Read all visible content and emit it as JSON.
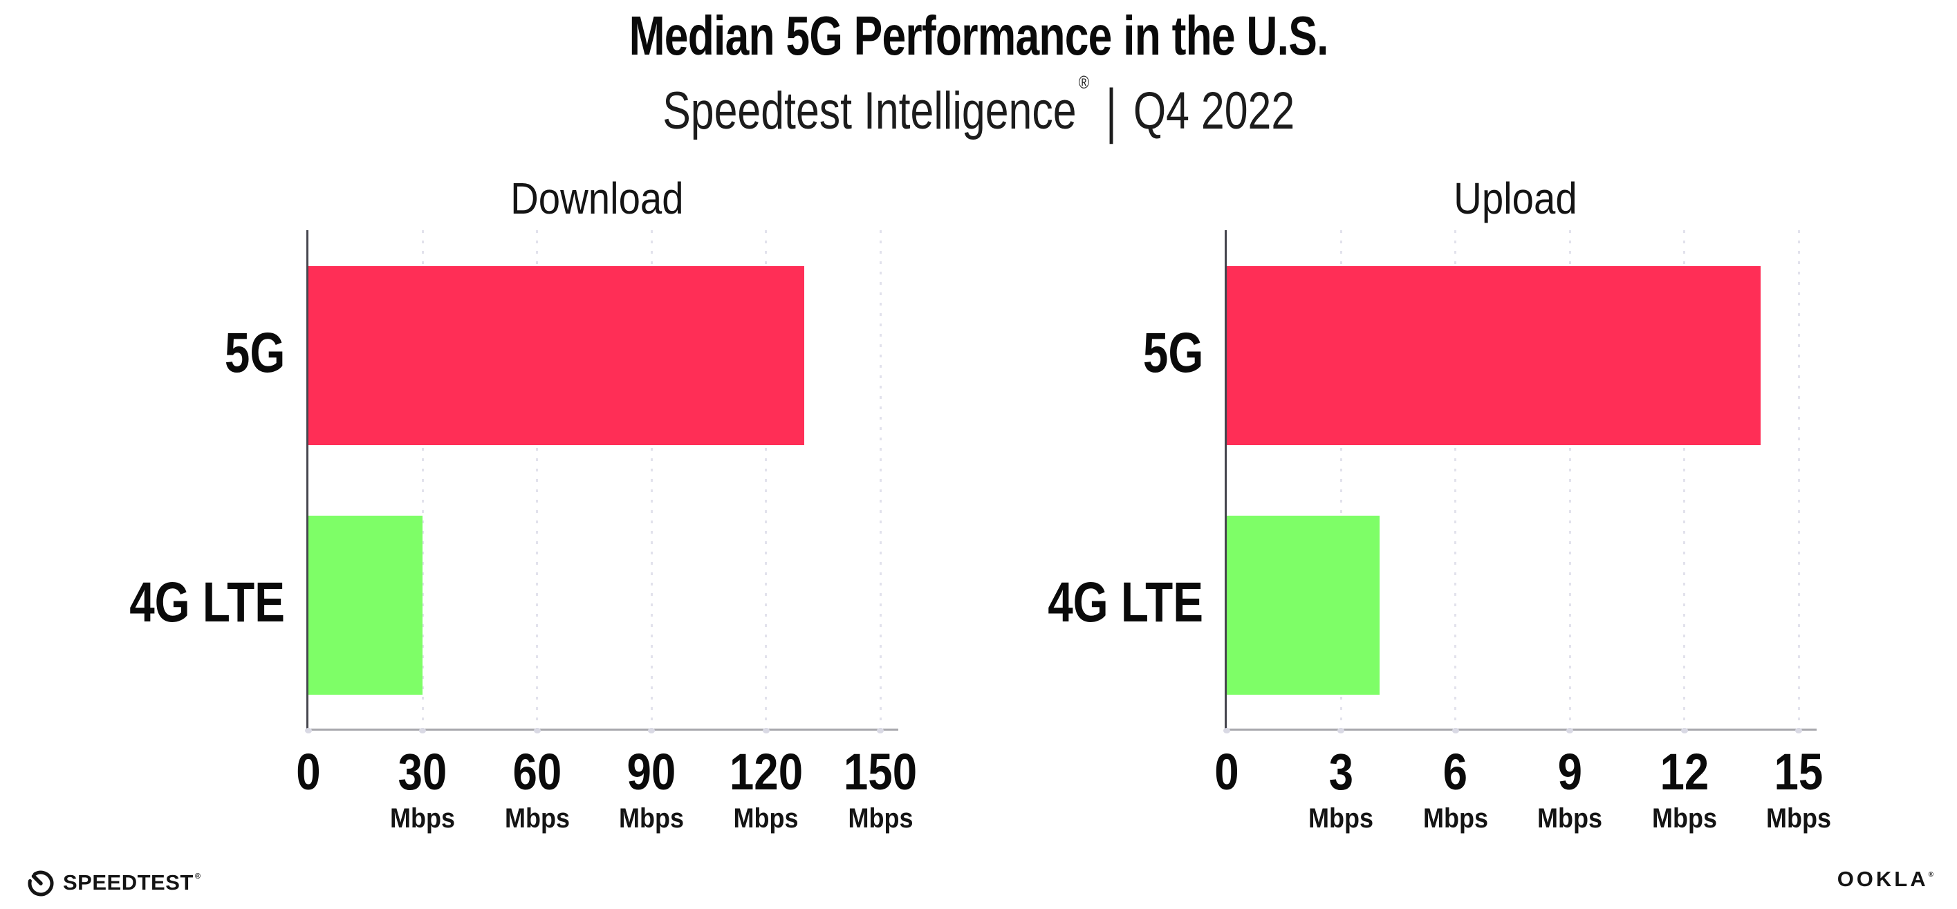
{
  "header": {
    "title": "Median 5G Performance in the U.S.",
    "subtitle_brand": "Speedtest Intelligence",
    "subtitle_reg": "®",
    "subtitle_sep": "|",
    "subtitle_period": "Q4 2022"
  },
  "footer": {
    "speedtest_label": "SPEEDTEST",
    "speedtest_reg": "®",
    "ookla_label": "OOKLA",
    "ookla_reg": "®"
  },
  "colors": {
    "bar_5g": "#ff2e56",
    "bar_4g_lte": "#7efe67",
    "gridline": "#e2e2ec",
    "axis_line": "#a7a7ac",
    "spine": "#45454d",
    "text": "#0e0e0e"
  },
  "chart_data": [
    {
      "type": "bar",
      "orientation": "horizontal",
      "title": "Download",
      "categories": [
        "5G",
        "4G LTE"
      ],
      "values": [
        130,
        30
      ],
      "unit": "Mbps",
      "bar_colors": [
        "#ff2e56",
        "#7efe67"
      ],
      "xlim": [
        0,
        150
      ],
      "grid": "vertical-dotted",
      "legend": null,
      "ticks": [
        {
          "v": 0,
          "label": "0",
          "unit": ""
        },
        {
          "v": 30,
          "label": "30",
          "unit": "Mbps"
        },
        {
          "v": 60,
          "label": "60",
          "unit": "Mbps"
        },
        {
          "v": 90,
          "label": "90",
          "unit": "Mbps"
        },
        {
          "v": 120,
          "label": "120",
          "unit": "Mbps"
        },
        {
          "v": 150,
          "label": "150",
          "unit": "Mbps"
        }
      ]
    },
    {
      "type": "bar",
      "orientation": "horizontal",
      "title": "Upload",
      "categories": [
        "5G",
        "4G LTE"
      ],
      "values": [
        14,
        4
      ],
      "unit": "Mbps",
      "bar_colors": [
        "#ff2e56",
        "#7efe67"
      ],
      "xlim": [
        0,
        15
      ],
      "grid": "vertical-dotted",
      "legend": null,
      "ticks": [
        {
          "v": 0,
          "label": "0",
          "unit": ""
        },
        {
          "v": 3,
          "label": "3",
          "unit": "Mbps"
        },
        {
          "v": 6,
          "label": "6",
          "unit": "Mbps"
        },
        {
          "v": 9,
          "label": "9",
          "unit": "Mbps"
        },
        {
          "v": 12,
          "label": "12",
          "unit": "Mbps"
        },
        {
          "v": 15,
          "label": "15",
          "unit": "Mbps"
        }
      ]
    }
  ]
}
